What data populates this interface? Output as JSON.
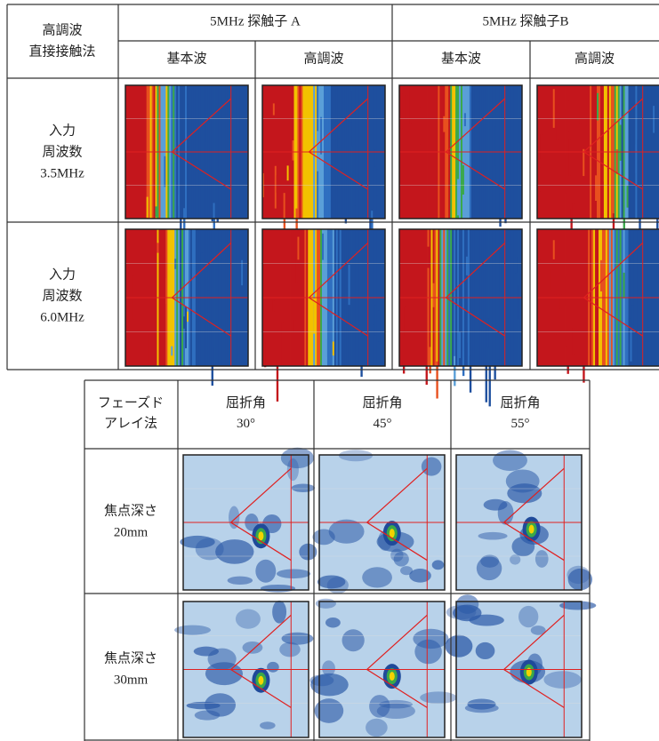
{
  "table1": {
    "corner": [
      "高調波",
      "直接接触法"
    ],
    "groups": [
      "5MHz 探触子 A",
      "5MHz 探触子B"
    ],
    "subheaders": [
      "基本波",
      "高調波",
      "基本波",
      "高調波"
    ],
    "rows": [
      [
        "入力",
        "周波数",
        "3.5MHz"
      ],
      [
        "入力",
        "周波数",
        "6.0MHz"
      ]
    ]
  },
  "table2": {
    "corner": [
      "フェーズド",
      "アレイ法"
    ],
    "columns": [
      [
        "屈折角",
        "30°"
      ],
      [
        "屈折角",
        "45°"
      ],
      [
        "屈折角",
        "55°"
      ]
    ],
    "rows": [
      [
        "焦点深さ",
        "20mm"
      ],
      [
        "焦点深さ",
        "30mm"
      ]
    ]
  }
}
